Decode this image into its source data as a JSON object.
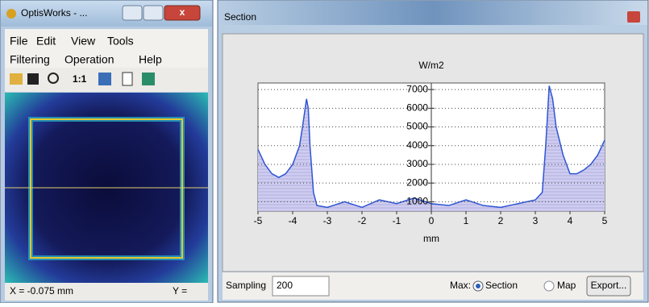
{
  "left_window": {
    "title": "OptisWorks - ...",
    "menu_row1": [
      "File",
      "Edit",
      "View",
      "Tools"
    ],
    "menu_row2": [
      "Filtering",
      "Operation",
      "Help"
    ],
    "toolbar_zoom": "1:1",
    "status_x": "X = -0.075 mm",
    "status_y": "Y ="
  },
  "right_window": {
    "title": "Section",
    "sampling_label": "Sampling",
    "sampling_value": "200",
    "max_label": "Max:",
    "option_section": "Section",
    "option_map": "Map",
    "export_button": "Export..."
  },
  "chart_data": {
    "type": "area",
    "title": "W/m2",
    "x_label": "mm",
    "x": [
      -5,
      -4.8,
      -4.6,
      -4.4,
      -4.2,
      -4.0,
      -3.8,
      -3.7,
      -3.6,
      -3.55,
      -3.5,
      -3.4,
      -3.3,
      -3.0,
      -2.5,
      -2.0,
      -1.5,
      -1.0,
      -0.5,
      0,
      0.5,
      1.0,
      1.5,
      2.0,
      2.5,
      3.0,
      3.2,
      3.3,
      3.4,
      3.5,
      3.6,
      3.8,
      4.0,
      4.2,
      4.4,
      4.6,
      4.8,
      5.0
    ],
    "values": [
      3800,
      3000,
      2500,
      2300,
      2500,
      3000,
      4000,
      5200,
      6500,
      6000,
      4000,
      1500,
      800,
      700,
      1000,
      700,
      1100,
      900,
      1200,
      900,
      800,
      1100,
      800,
      700,
      900,
      1100,
      1500,
      4000,
      7200,
      6500,
      5000,
      3500,
      2500,
      2500,
      2700,
      3000,
      3500,
      4300
    ],
    "color": "#2f55d4",
    "xlim": [
      -5,
      5
    ],
    "xticks": [
      -5,
      -4,
      -3,
      -2,
      -1,
      0,
      1,
      2,
      3,
      4,
      5
    ],
    "ylim": [
      500,
      7350
    ],
    "yticks": [
      1000,
      2000,
      3000,
      4000,
      5000,
      6000,
      7000
    ],
    "grid": true
  }
}
